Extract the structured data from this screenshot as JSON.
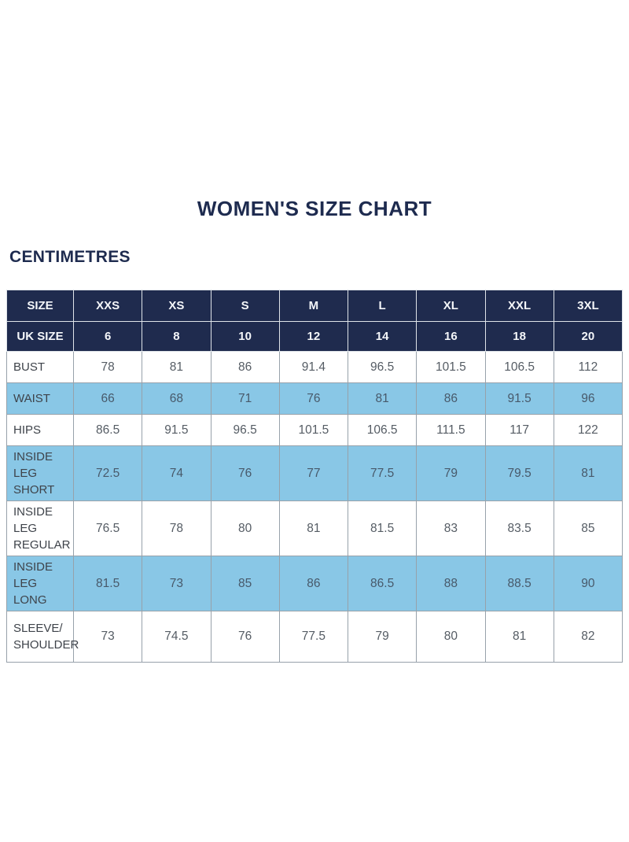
{
  "page": {
    "title": "WOMEN'S SIZE CHART",
    "units_label": "CENTIMETRES"
  },
  "colors": {
    "navy": "#1f2b4e",
    "light_blue": "#89c7e6",
    "header_text": "#f4f6f9",
    "title_text": "#1e2b4f",
    "label_text": "#3e434a",
    "data_text": "#555c64",
    "shaded_text": "#48596a",
    "border": "#97a1aa"
  },
  "chart_data": {
    "type": "table",
    "title": "WOMEN'S SIZE CHART",
    "units": "CENTIMETRES",
    "header_rows": [
      {
        "label": "SIZE",
        "values": [
          "XXS",
          "XS",
          "S",
          "M",
          "L",
          "XL",
          "XXL",
          "3XL"
        ]
      },
      {
        "label": "UK SIZE",
        "values": [
          "6",
          "8",
          "10",
          "12",
          "14",
          "16",
          "18",
          "20"
        ]
      }
    ],
    "rows": [
      {
        "label": "BUST",
        "values": [
          "78",
          "81",
          "86",
          "91.4",
          "96.5",
          "101.5",
          "106.5",
          "112"
        ],
        "shaded": false
      },
      {
        "label": "WAIST",
        "values": [
          "66",
          "68",
          "71",
          "76",
          "81",
          "86",
          "91.5",
          "96"
        ],
        "shaded": true
      },
      {
        "label": "HIPS",
        "values": [
          "86.5",
          "91.5",
          "96.5",
          "101.5",
          "106.5",
          "111.5",
          "117",
          "122"
        ],
        "shaded": false
      },
      {
        "label": [
          "INSIDE LEG",
          "SHORT"
        ],
        "values": [
          "72.5",
          "74",
          "76",
          "77",
          "77.5",
          "79",
          "79.5",
          "81"
        ],
        "shaded": true
      },
      {
        "label": [
          "INSIDE LEG",
          "REGULAR"
        ],
        "values": [
          "76.5",
          "78",
          "80",
          "81",
          "81.5",
          "83",
          "83.5",
          "85"
        ],
        "shaded": false
      },
      {
        "label": [
          "INSIDE LEG",
          "LONG"
        ],
        "values": [
          "81.5",
          "73",
          "85",
          "86",
          "86.5",
          "88",
          "88.5",
          "90"
        ],
        "shaded": true
      },
      {
        "label": [
          "SLEEVE/",
          "SHOULDER"
        ],
        "values": [
          "73",
          "74.5",
          "76",
          "77.5",
          "79",
          "80",
          "81",
          "82"
        ],
        "shaded": false
      }
    ]
  }
}
